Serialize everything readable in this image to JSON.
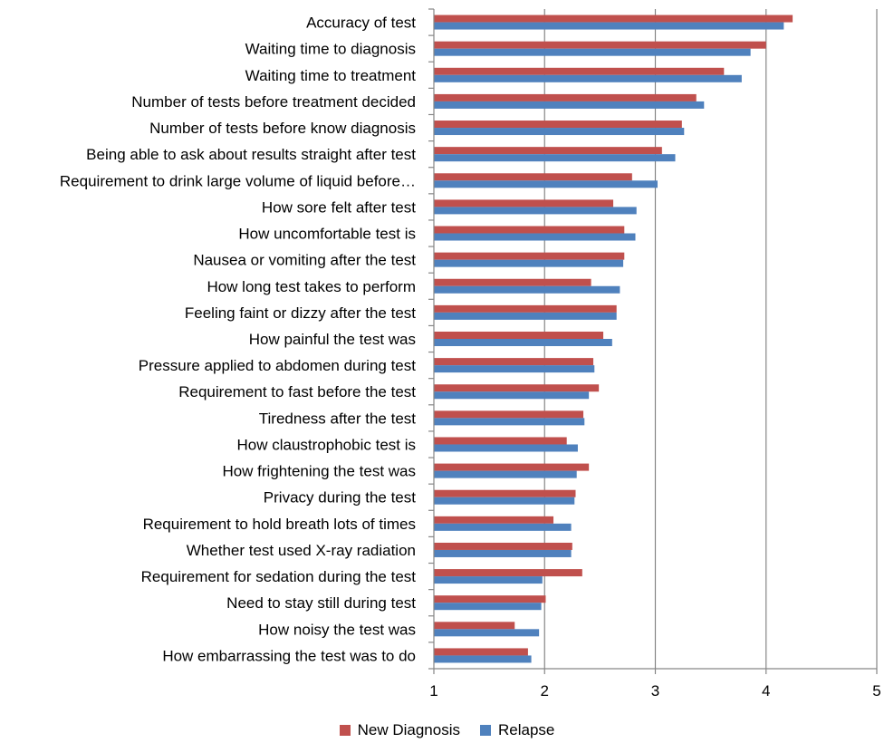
{
  "chart_data": {
    "type": "bar",
    "orientation": "horizontal",
    "categories": [
      "Accuracy of test",
      "Waiting time to diagnosis",
      "Waiting time to treatment",
      "Number of tests before treatment decided",
      "Number of tests before know diagnosis",
      "Being able to ask about results straight after test",
      "Requirement to drink large volume of liquid before…",
      "How sore felt after test",
      "How uncomfortable test is",
      "Nausea or vomiting after the test",
      "How long test takes to perform",
      "Feeling faint or dizzy after the test",
      "How painful the test was",
      "Pressure applied to abdomen during test",
      "Requirement to fast before the test",
      "Tiredness after the test",
      "How claustrophobic test is",
      "How frightening the test was",
      "Privacy during the test",
      "Requirement to hold breath lots of times",
      "Whether test used X-ray radiation",
      "Requirement for sedation during the test",
      "Need to stay still during test",
      "How noisy the test was",
      "How embarrassing the test was to do"
    ],
    "series": [
      {
        "name": "New Diagnosis",
        "color": "#c0504d",
        "values": [
          4.24,
          4.0,
          3.62,
          3.37,
          3.24,
          3.06,
          2.79,
          2.62,
          2.72,
          2.72,
          2.42,
          2.65,
          2.53,
          2.44,
          2.49,
          2.35,
          2.2,
          2.4,
          2.28,
          2.08,
          2.25,
          2.34,
          2.01,
          1.73,
          1.85
        ]
      },
      {
        "name": "Relapse",
        "color": "#4f81bd",
        "values": [
          4.16,
          3.86,
          3.78,
          3.44,
          3.26,
          3.18,
          3.02,
          2.83,
          2.82,
          2.71,
          2.68,
          2.65,
          2.61,
          2.45,
          2.4,
          2.36,
          2.3,
          2.29,
          2.27,
          2.24,
          2.24,
          1.98,
          1.97,
          1.95,
          1.88
        ]
      }
    ],
    "xlim": [
      1,
      5
    ],
    "xticks": [
      "1",
      "2",
      "3",
      "4",
      "5"
    ],
    "grid": true,
    "legend_position": "bottom"
  }
}
